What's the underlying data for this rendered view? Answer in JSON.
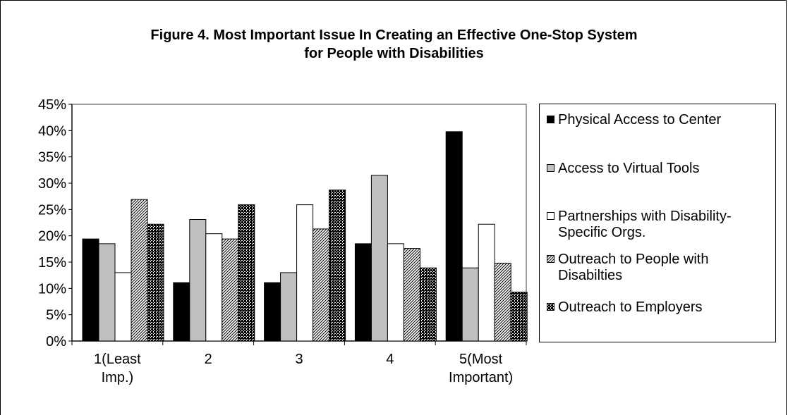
{
  "chart_data": {
    "type": "bar",
    "title": [
      "Figure 4. Most Important Issue In Creating an Effective One-Stop System",
      "for People with Disabilities"
    ],
    "categories": [
      [
        "1(Least",
        "Imp.)"
      ],
      [
        "2"
      ],
      [
        "3"
      ],
      [
        "4"
      ],
      [
        "5(Most",
        "Important)"
      ]
    ],
    "ylim": [
      0,
      45
    ],
    "yticks": [
      "0%",
      "5%",
      "10%",
      "15%",
      "20%",
      "25%",
      "30%",
      "35%",
      "40%",
      "45%"
    ],
    "ytick_values": [
      0,
      5,
      10,
      15,
      20,
      25,
      30,
      35,
      40,
      45
    ],
    "grid": false,
    "legend_position": "right",
    "series": [
      {
        "name": "Physical Access to Center",
        "fill": "black",
        "values": [
          19.4,
          11.1,
          11.1,
          18.5,
          39.8
        ]
      },
      {
        "name": "Access to Virtual Tools",
        "fill": "gray",
        "values": [
          18.5,
          23.1,
          13.0,
          31.5,
          13.9
        ]
      },
      {
        "name": "Partnerships with Disability-Specific Orgs.",
        "fill": "white",
        "values": [
          13.0,
          20.4,
          25.9,
          18.5,
          22.2
        ]
      },
      {
        "name": "Outreach to People with Disabilties",
        "fill": "diagonal-hatch",
        "values": [
          26.9,
          19.4,
          21.3,
          17.6,
          14.8
        ]
      },
      {
        "name": "Outreach to Employers",
        "fill": "crosshatch",
        "values": [
          22.2,
          25.9,
          28.7,
          13.9,
          9.3
        ]
      }
    ]
  }
}
